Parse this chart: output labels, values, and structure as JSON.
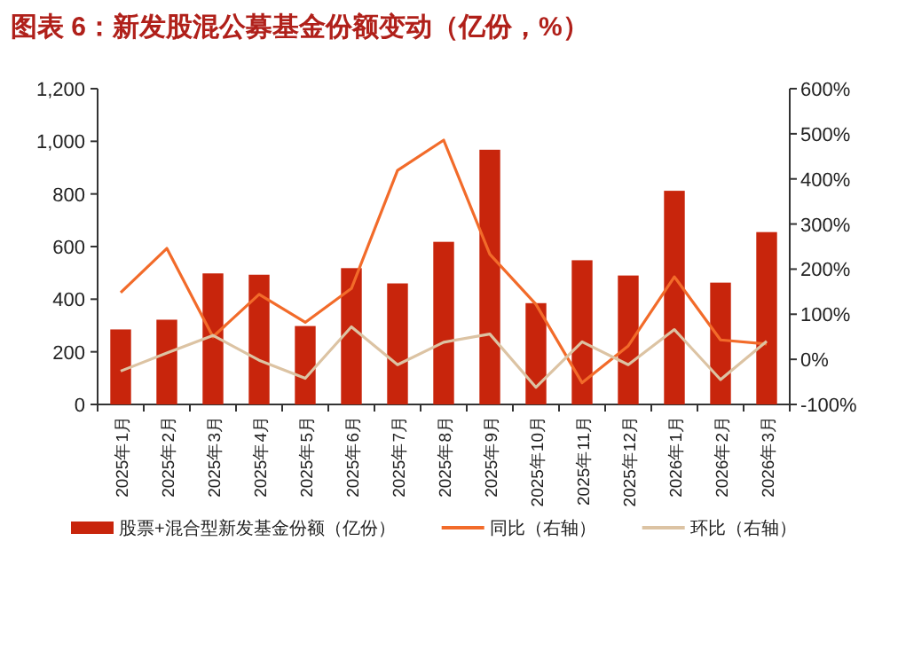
{
  "chart_data": {
    "type": "bar",
    "title": "图表 6：新发股混公募基金份额变动（亿份，%）",
    "categories": [
      "2025年1月",
      "2025年2月",
      "2025年3月",
      "2025年4月",
      "2025年5月",
      "2025年6月",
      "2025年7月",
      "2025年8月",
      "2025年9月",
      "2025年10月",
      "2025年11月",
      "2025年12月",
      "2026年1月",
      "2026年2月",
      "2026年3月"
    ],
    "series": [
      {
        "name": "股票+混合型新发基金份额（亿份）",
        "color": "#c8250c",
        "values": [
          285,
          322,
          498,
          493,
          298,
          518,
          460,
          618,
          968,
          385,
          548,
          490,
          812,
          463,
          655
        ]
      },
      {
        "name": "同比（右轴）",
        "type": "line",
        "axis": "y2",
        "color": "#f26b2a",
        "values": [
          148,
          246,
          50,
          144,
          82,
          157,
          419,
          486,
          233,
          122,
          -52,
          30,
          183,
          43,
          34
        ]
      },
      {
        "name": "环比（右轴）",
        "type": "line",
        "axis": "y2",
        "color": "#dcc3a3",
        "values": [
          -26,
          14,
          53,
          -2,
          -42,
          72,
          -12,
          38,
          56,
          -62,
          39,
          -12,
          66,
          -45,
          40
        ]
      }
    ],
    "ylim": [
      0,
      1200
    ],
    "yticks": [
      0,
      200,
      400,
      600,
      800,
      {
        "value": 1000,
        "label": "1,000"
      },
      {
        "value": 1200,
        "label": "1,200"
      }
    ],
    "y2lim": [
      -100,
      600
    ],
    "y2ticks": [
      {
        "value": -100,
        "label": "-100%"
      },
      {
        "value": 0,
        "label": "0%"
      },
      {
        "value": 100,
        "label": "100%"
      },
      {
        "value": 200,
        "label": "200%"
      },
      {
        "value": 300,
        "label": "300%"
      },
      {
        "value": 400,
        "label": "400%"
      },
      {
        "value": 500,
        "label": "500%"
      },
      {
        "value": 600,
        "label": "600%"
      }
    ],
    "grid": false,
    "legend": "bottom",
    "marker": "none",
    "line_style": "solid"
  }
}
